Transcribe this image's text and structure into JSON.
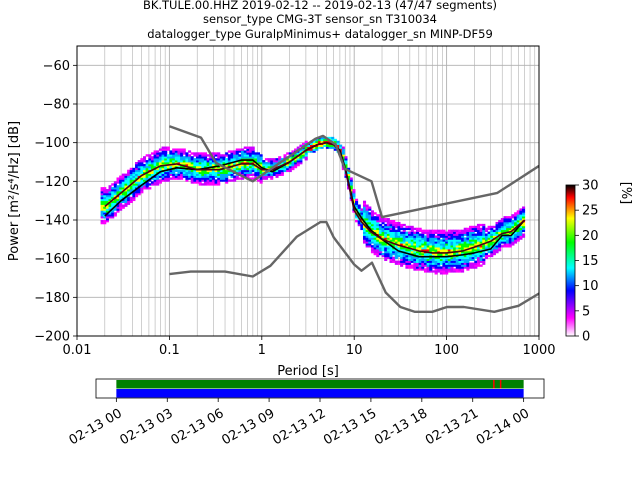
{
  "chart_data": [
    {
      "type": "heatmap",
      "title_lines": [
        "BK.TULE.00.HHZ   2019-02-12 -- 2019-02-13  (47/47 segments)",
        "sensor_type CMG-3T sensor_sn T310034",
        "datalogger_type GuralpMinimus+ datalogger_sn MINP-DF59"
      ],
      "xlabel": "Period [s]",
      "ylabel": "Power [m²/s⁴/Hz] [dB]",
      "xscale": "log",
      "xlim": [
        0.01,
        1000
      ],
      "ylim": [
        -200,
        -50
      ],
      "xticks": [
        0.01,
        0.1,
        1,
        10,
        100,
        1000
      ],
      "xtick_labels": [
        "0.01",
        "0.1",
        "1",
        "10",
        "100",
        "1000"
      ],
      "yticks": [
        -200,
        -180,
        -160,
        -140,
        -120,
        -100,
        -80,
        -60
      ],
      "ytick_labels": [
        "−200",
        "−180",
        "−160",
        "−140",
        "−120",
        "−100",
        "−80",
        "−60"
      ],
      "grid": true,
      "colorbar": {
        "label": "[%]",
        "min": 0,
        "max": 30,
        "ticks": [
          0,
          5,
          10,
          15,
          20,
          25,
          30
        ],
        "colors": [
          "#ffffff",
          "#ff00ff",
          "#0000ff",
          "#00ffff",
          "#00ff00",
          "#ffff00",
          "#ff0000",
          "#000000"
        ]
      },
      "series": [
        {
          "role": "mode",
          "color": "#000000",
          "x": [
            0.02,
            0.03,
            0.05,
            0.08,
            0.12,
            0.2,
            0.35,
            0.6,
            0.8,
            1.0,
            1.3,
            2.0,
            3.0,
            4.0,
            5.0,
            6.0,
            7.0,
            8.0,
            9.0,
            10,
            12,
            15,
            20,
            30,
            50,
            70,
            100,
            150,
            200,
            300,
            400,
            500,
            700
          ],
          "y": [
            -138,
            -130,
            -122,
            -115,
            -113,
            -114,
            -112,
            -109,
            -109,
            -113,
            -115,
            -110,
            -104,
            -101,
            -100,
            -101,
            -104,
            -113,
            -124,
            -133,
            -139,
            -145,
            -150,
            -156,
            -159,
            -159,
            -159,
            -158,
            -157,
            -155,
            -148,
            -148,
            -140
          ]
        },
        {
          "role": "mean",
          "color": "#4b0016",
          "x": [
            0.02,
            0.03,
            0.05,
            0.08,
            0.12,
            0.2,
            0.35,
            0.6,
            0.8,
            1.0,
            1.3,
            2.0,
            3.0,
            4.0,
            5.0,
            6.0,
            7.0,
            8.0,
            9.0,
            10,
            12,
            15,
            20,
            30,
            50,
            70,
            100,
            150,
            200,
            300,
            400,
            500,
            700
          ],
          "y": [
            -133,
            -126,
            -117,
            -112,
            -111,
            -114,
            -114,
            -111,
            -111,
            -114,
            -114,
            -110,
            -104,
            -101,
            -100,
            -101,
            -105,
            -114,
            -125,
            -135,
            -141,
            -146,
            -150,
            -153,
            -156,
            -157,
            -157,
            -156,
            -154,
            -151,
            -147,
            -146,
            -140
          ]
        },
        {
          "role": "NHNM",
          "color": "#666666",
          "x": [
            0.1,
            0.22,
            0.32,
            0.8,
            3.8,
            4.6,
            6.3,
            7.9,
            15.4,
            20,
            354.8,
            1000
          ],
          "y": [
            -91.5,
            -97.4,
            -110.5,
            -120,
            -98,
            -96.5,
            -101,
            -113.5,
            -120,
            -138.5,
            -126,
            -112
          ]
        },
        {
          "role": "NLNM",
          "color": "#666666",
          "x": [
            0.1,
            0.17,
            0.4,
            0.8,
            1.24,
            2.4,
            4.3,
            5.0,
            6.0,
            10,
            12,
            15.6,
            21.9,
            31.6,
            45,
            70,
            101,
            154,
            328,
            600,
            1000
          ],
          "y": [
            -168,
            -166.7,
            -166.7,
            -169.2,
            -163.7,
            -148.6,
            -141.1,
            -141.1,
            -149,
            -163,
            -166.2,
            -162.1,
            -177.5,
            -185,
            -187.5,
            -187.5,
            -185,
            -185,
            -187.5,
            -184.4,
            -178
          ]
        }
      ]
    },
    {
      "type": "timeline",
      "xtick_labels": [
        "02-13 00",
        "02-13 03",
        "02-13 06",
        "02-13 09",
        "02-13 12",
        "02-13 15",
        "02-13 18",
        "02-13 21",
        "02-14 00"
      ],
      "xlim_hours": [
        -1.2,
        25.2
      ],
      "bars": [
        {
          "color": "#008000",
          "start_hour": 0,
          "end_hour": 24
        },
        {
          "color": "#0000ff",
          "start_hour": 0,
          "end_hour": 24
        }
      ],
      "markers": [
        {
          "color": "#ff0000",
          "hour": 22.2
        },
        {
          "color": "#ff0000",
          "hour": 22.6
        }
      ]
    }
  ]
}
